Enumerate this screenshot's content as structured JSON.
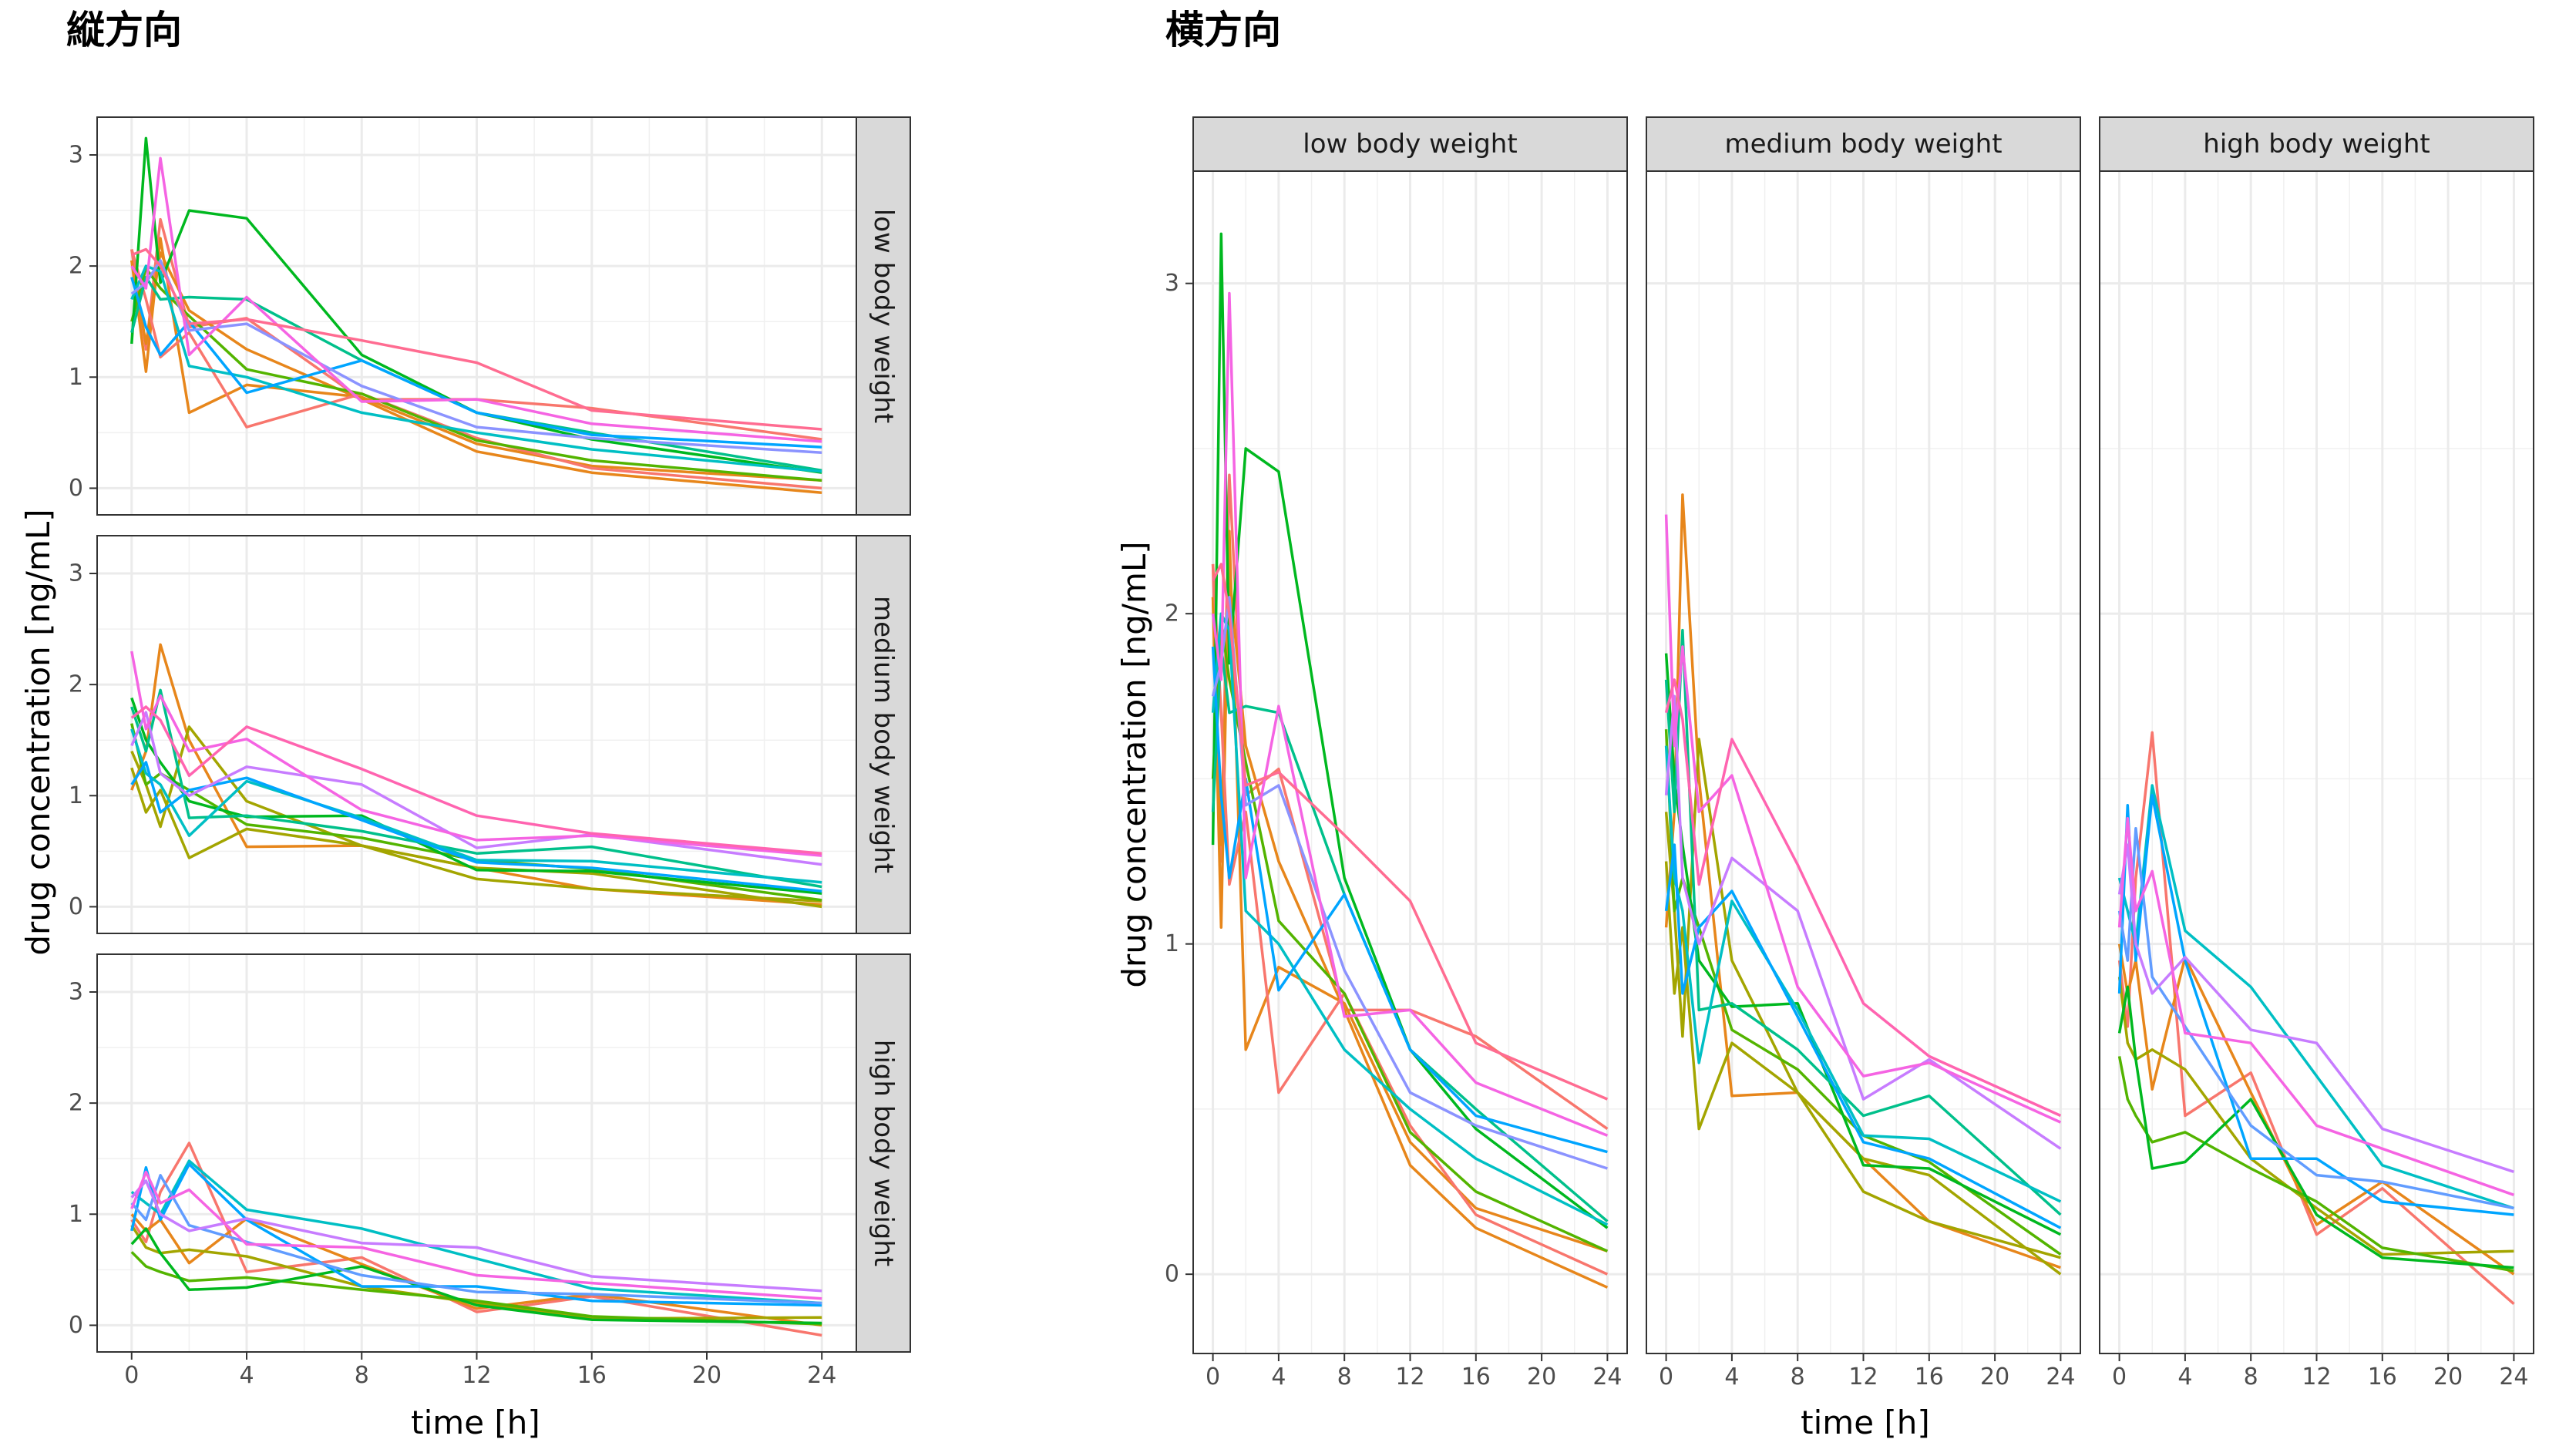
{
  "chart_data": [
    {
      "type": "line",
      "title": "縦方向",
      "layout": "facets stacked vertically, strip labels on the right",
      "xlabel": "time [h]",
      "ylabel": "drug concentration [ng/mL]",
      "xlim": [
        -1.2,
        25.2
      ],
      "ylim": [
        -0.24,
        3.34
      ],
      "xticks": [
        0,
        4,
        8,
        12,
        16,
        20,
        24
      ],
      "xtick_labels": [
        "0",
        "4",
        "8",
        "12",
        "16",
        "20",
        "24"
      ],
      "yticks": [
        0,
        1,
        2,
        3
      ],
      "ytick_labels": [
        "0",
        "1",
        "2",
        "3"
      ],
      "grid": true,
      "legend": "none",
      "facets": [
        "low body weight",
        "medium body weight",
        "high body weight"
      ]
    },
    {
      "type": "line",
      "title": "横方向",
      "layout": "facets side by side, strip labels on top",
      "xlabel": "time [h]",
      "ylabel": "drug concentration [ng/mL]",
      "xlim": [
        -1.2,
        25.2
      ],
      "ylim": [
        -0.24,
        3.34
      ],
      "xticks": [
        0,
        4,
        8,
        12,
        16,
        20,
        24
      ],
      "xtick_labels": [
        "0",
        "4",
        "8",
        "12",
        "16",
        "20",
        "24"
      ],
      "yticks": [
        0,
        1,
        2,
        3
      ],
      "ytick_labels": [
        "0",
        "1",
        "2",
        "3"
      ],
      "grid": true,
      "legend": "none",
      "facets": [
        "low body weight",
        "medium body weight",
        "high body weight"
      ]
    }
  ],
  "times": [
    0,
    0.5,
    1,
    2,
    4,
    8,
    12,
    16,
    24
  ],
  "facet_series": {
    "low body weight": [
      {
        "color": "#F8766D",
        "values": [
          2.15,
          1.25,
          2.42,
          1.45,
          1.53,
          0.8,
          0.8,
          0.72,
          0.44
        ]
      },
      {
        "color": "#E7861B",
        "values": [
          2.05,
          1.3,
          2.12,
          1.6,
          1.25,
          0.8,
          0.33,
          0.14,
          -0.04
        ]
      },
      {
        "color": "#E7861B",
        "values": [
          2.05,
          1.05,
          2.25,
          0.68,
          0.93,
          0.82,
          0.4,
          0.2,
          0.07
        ]
      },
      {
        "color": "#F8766D",
        "values": [
          2.15,
          1.7,
          1.18,
          1.4,
          0.55,
          0.85,
          0.45,
          0.18,
          0.0
        ]
      },
      {
        "color": "#53B400",
        "values": [
          1.5,
          1.98,
          1.8,
          1.55,
          1.07,
          0.85,
          0.43,
          0.25,
          0.07
        ]
      },
      {
        "color": "#00B81F",
        "values": [
          1.3,
          3.15,
          1.85,
          2.5,
          2.43,
          1.2,
          0.68,
          0.44,
          0.14
        ]
      },
      {
        "color": "#00C08B",
        "values": [
          1.4,
          1.9,
          1.7,
          1.72,
          1.7,
          1.15,
          0.68,
          0.5,
          0.16
        ]
      },
      {
        "color": "#00BFC4",
        "values": [
          1.7,
          2.0,
          1.95,
          1.1,
          1.0,
          0.68,
          0.5,
          0.35,
          0.15
        ]
      },
      {
        "color": "#00A5FF",
        "values": [
          1.9,
          1.45,
          1.2,
          1.5,
          0.86,
          1.15,
          0.68,
          0.48,
          0.37
        ]
      },
      {
        "color": "#8B93FF",
        "values": [
          1.75,
          1.85,
          2.05,
          1.42,
          1.48,
          0.92,
          0.55,
          0.45,
          0.32
        ]
      },
      {
        "color": "#F564E3",
        "values": [
          2.0,
          1.8,
          2.97,
          1.2,
          1.72,
          0.78,
          0.8,
          0.58,
          0.42
        ]
      },
      {
        "color": "#FF6C91",
        "values": [
          2.1,
          2.15,
          2.0,
          1.48,
          1.52,
          1.33,
          1.13,
          0.7,
          0.53
        ]
      }
    ],
    "medium body weight": [
      {
        "color": "#E7861B",
        "values": [
          1.05,
          1.4,
          2.36,
          1.5,
          0.54,
          0.55,
          0.35,
          0.16,
          0.02
        ]
      },
      {
        "color": "#A3A500",
        "values": [
          1.4,
          1.1,
          0.72,
          1.62,
          0.95,
          0.55,
          0.35,
          0.3,
          0.0
        ]
      },
      {
        "color": "#A3A500",
        "values": [
          1.25,
          0.85,
          1.05,
          0.44,
          0.7,
          0.55,
          0.25,
          0.16,
          0.05
        ]
      },
      {
        "color": "#53B400",
        "values": [
          1.65,
          1.1,
          1.2,
          1.05,
          0.74,
          0.62,
          0.42,
          0.34,
          0.06
        ]
      },
      {
        "color": "#00B81F",
        "values": [
          1.88,
          1.5,
          1.3,
          0.95,
          0.81,
          0.82,
          0.33,
          0.32,
          0.12
        ]
      },
      {
        "color": "#00C08B",
        "values": [
          1.8,
          1.4,
          1.95,
          0.8,
          0.82,
          0.68,
          0.48,
          0.54,
          0.18
        ]
      },
      {
        "color": "#00BFC4",
        "values": [
          1.6,
          1.2,
          1.1,
          0.64,
          1.13,
          0.8,
          0.42,
          0.41,
          0.22
        ]
      },
      {
        "color": "#00A5FF",
        "values": [
          1.1,
          1.3,
          0.85,
          1.05,
          1.16,
          0.78,
          0.4,
          0.35,
          0.14
        ]
      },
      {
        "color": "#C77CFF",
        "values": [
          1.45,
          1.75,
          1.2,
          1.0,
          1.26,
          1.1,
          0.53,
          0.65,
          0.38
        ]
      },
      {
        "color": "#F564E3",
        "values": [
          2.3,
          1.6,
          1.9,
          1.4,
          1.51,
          0.87,
          0.6,
          0.64,
          0.46
        ]
      },
      {
        "color": "#FF64B0",
        "values": [
          1.7,
          1.8,
          1.68,
          1.18,
          1.62,
          1.24,
          0.82,
          0.66,
          0.48
        ]
      }
    ],
    "high body weight": [
      {
        "color": "#F8766D",
        "values": [
          0.95,
          0.75,
          1.2,
          1.64,
          0.48,
          0.61,
          0.12,
          0.26,
          -0.09
        ]
      },
      {
        "color": "#E7861B",
        "values": [
          1.0,
          0.85,
          0.95,
          0.56,
          0.96,
          0.55,
          0.15,
          0.28,
          0.0
        ]
      },
      {
        "color": "#A3A500",
        "values": [
          0.9,
          0.7,
          0.65,
          0.68,
          0.62,
          0.35,
          0.2,
          0.06,
          0.07
        ]
      },
      {
        "color": "#53B400",
        "values": [
          0.66,
          0.53,
          0.48,
          0.4,
          0.43,
          0.32,
          0.22,
          0.08,
          0.01
        ]
      },
      {
        "color": "#00B81F",
        "values": [
          0.73,
          0.87,
          0.65,
          0.32,
          0.34,
          0.53,
          0.18,
          0.05,
          0.02
        ]
      },
      {
        "color": "#00BFC4",
        "values": [
          1.2,
          1.1,
          1.0,
          1.48,
          1.04,
          0.87,
          0.6,
          0.33,
          0.2
        ]
      },
      {
        "color": "#00A5FF",
        "values": [
          0.85,
          1.42,
          0.95,
          1.45,
          0.95,
          0.35,
          0.35,
          0.22,
          0.18
        ]
      },
      {
        "color": "#619CFF",
        "values": [
          1.1,
          0.95,
          1.35,
          0.9,
          0.75,
          0.45,
          0.3,
          0.28,
          0.2
        ]
      },
      {
        "color": "#C77CFF",
        "values": [
          1.15,
          1.3,
          1.0,
          0.85,
          0.96,
          0.74,
          0.7,
          0.44,
          0.31
        ]
      },
      {
        "color": "#F564E3",
        "values": [
          1.05,
          1.38,
          1.1,
          1.22,
          0.73,
          0.7,
          0.45,
          0.38,
          0.24
        ]
      }
    ]
  }
}
